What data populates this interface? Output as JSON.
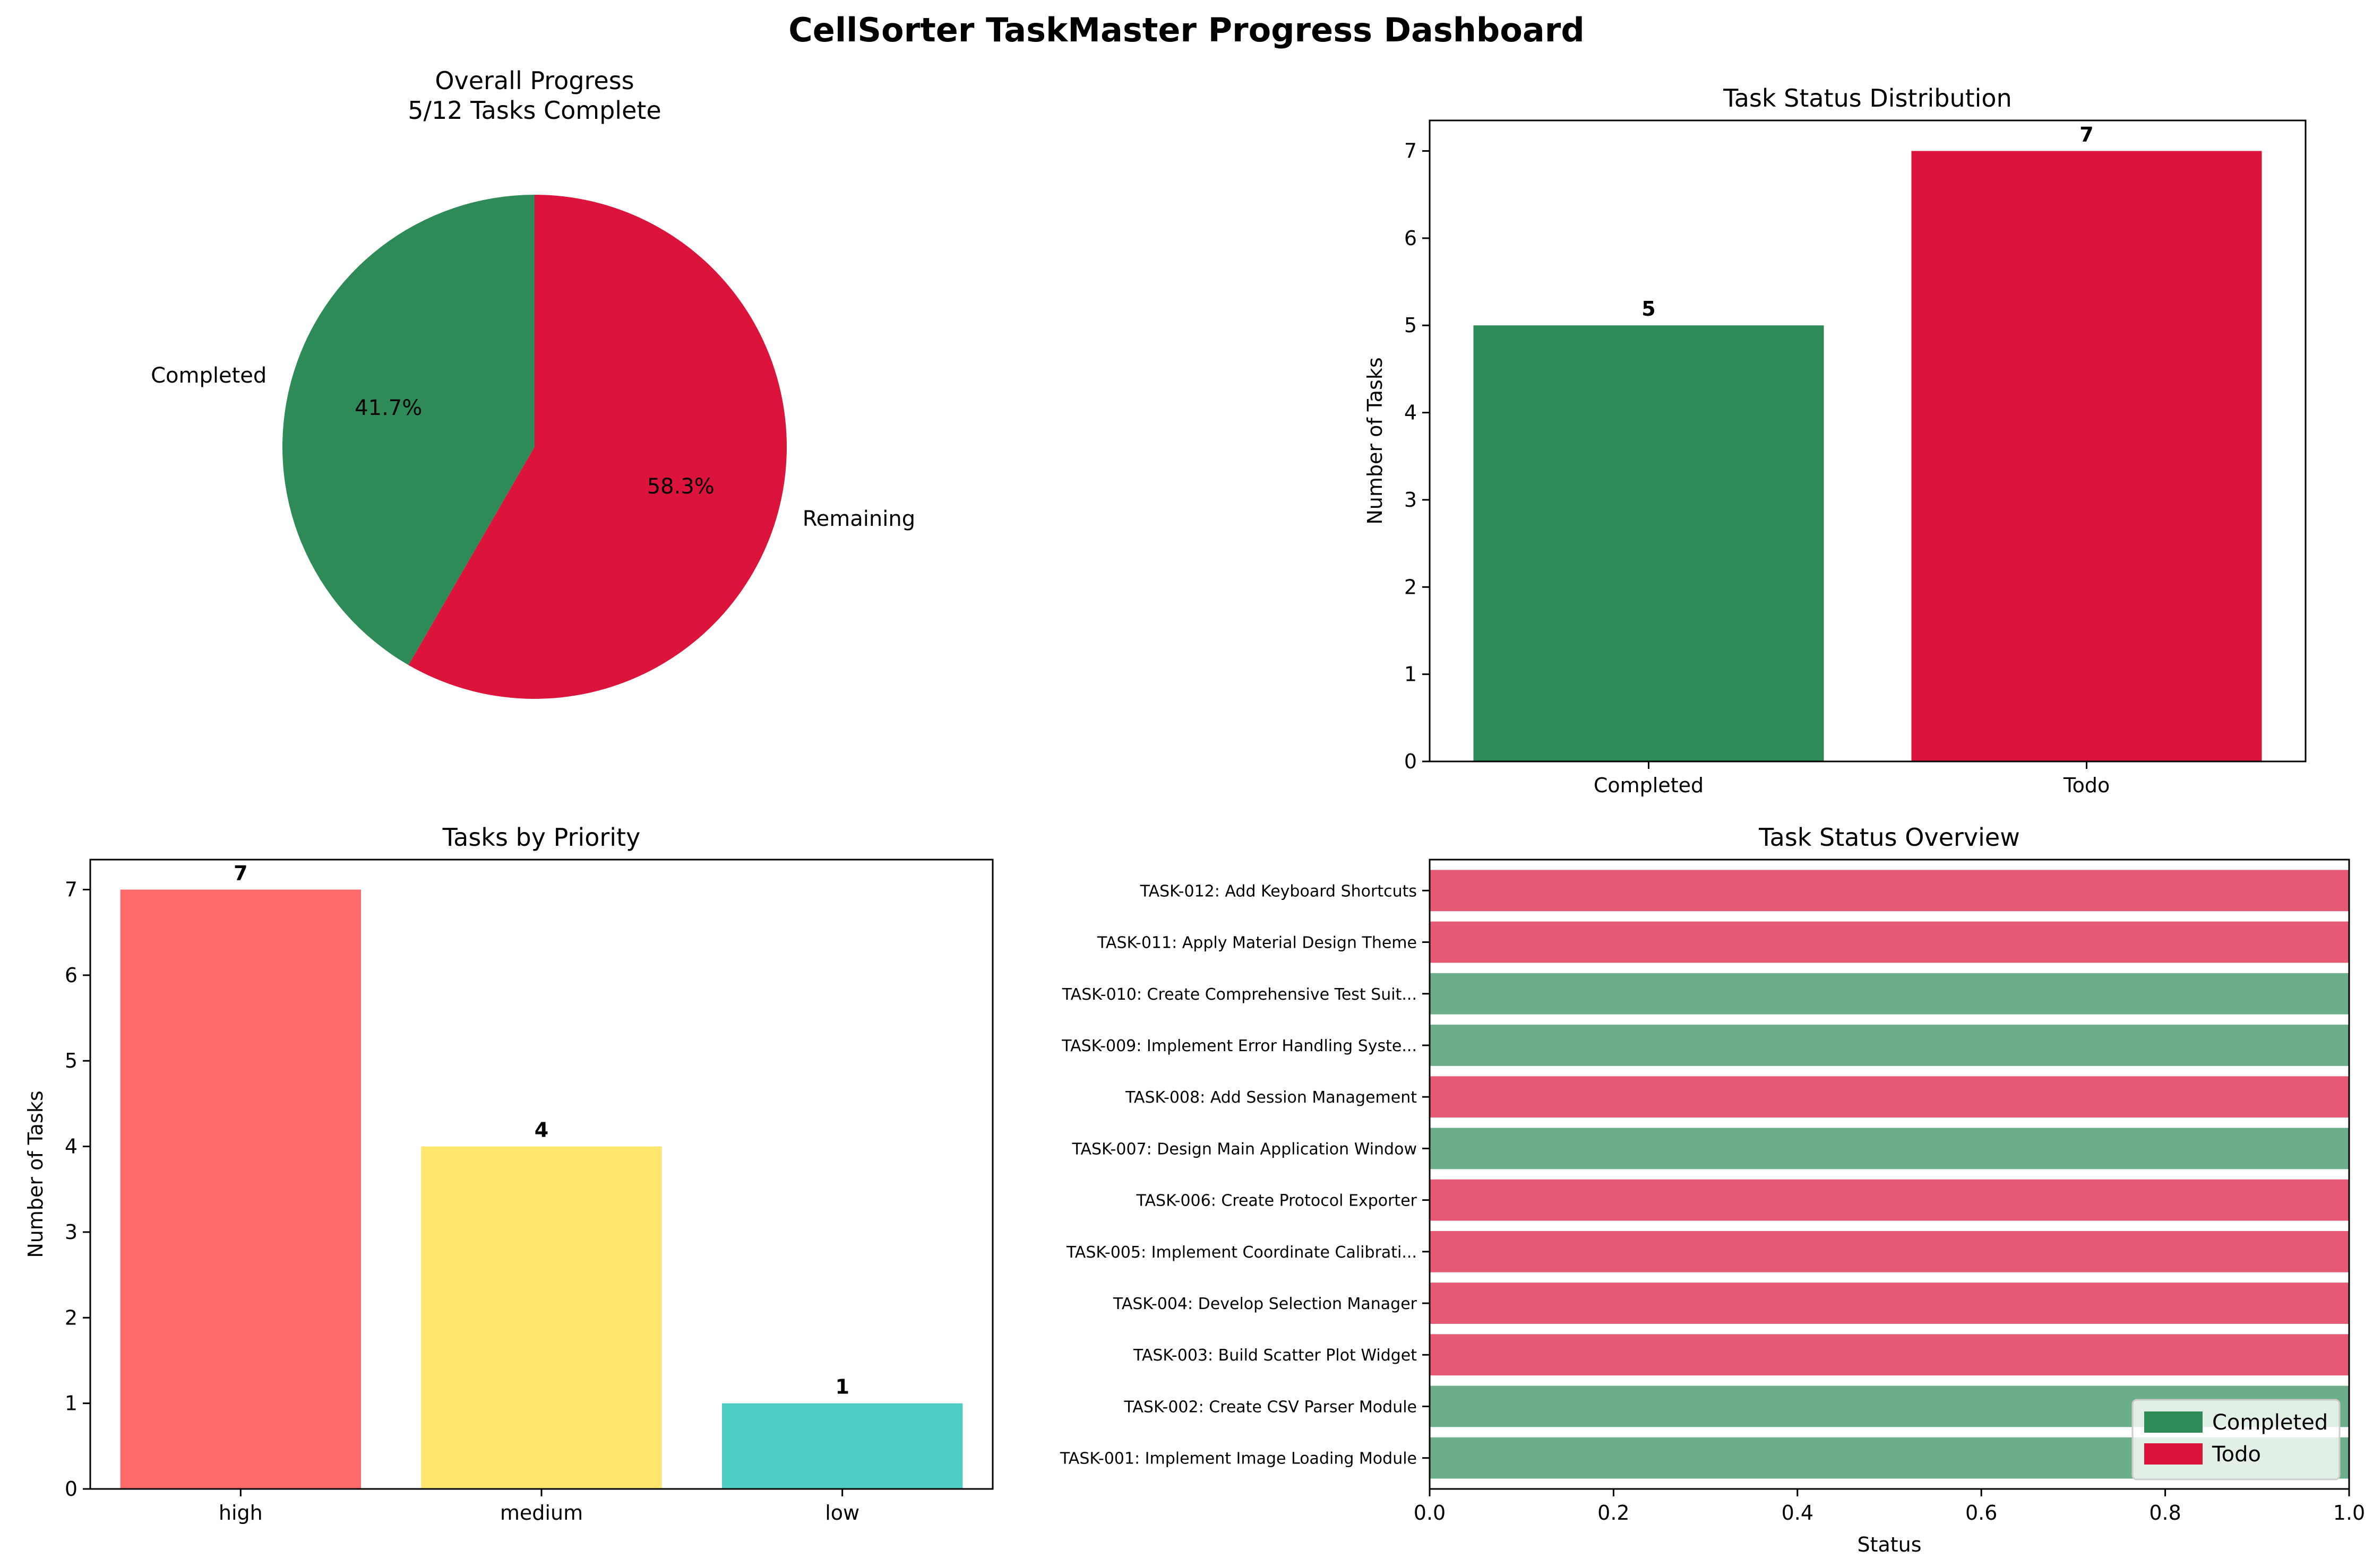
{
  "title": "CellSorter TaskMaster Progress Dashboard",
  "chart_data": [
    {
      "type": "pie",
      "title": "Overall Progress\n5/12 Tasks Complete",
      "labels": [
        "Completed",
        "Remaining"
      ],
      "values": [
        5,
        7
      ],
      "percent_labels": [
        "41.7%",
        "58.3%"
      ],
      "colors": [
        "#2e8b57",
        "#dc143c"
      ],
      "start_angle": 90,
      "counterclockwise": true
    },
    {
      "type": "bar",
      "title": "Task Status Distribution",
      "categories": [
        "Completed",
        "Todo"
      ],
      "values": [
        5,
        7
      ],
      "value_labels": [
        "5",
        "7"
      ],
      "colors": [
        "#2e8b57",
        "#dc143c"
      ],
      "xlabel": "",
      "ylabel": "Number of Tasks",
      "ylim": [
        0,
        7.35
      ],
      "yticks": [
        0,
        1,
        2,
        3,
        4,
        5,
        6,
        7
      ]
    },
    {
      "type": "bar",
      "title": "Tasks by Priority",
      "categories": [
        "high",
        "medium",
        "low"
      ],
      "values": [
        7,
        4,
        1
      ],
      "value_labels": [
        "7",
        "4",
        "1"
      ],
      "colors": [
        "#ff6b6b",
        "#ffe66d",
        "#4ecdc4"
      ],
      "xlabel": "",
      "ylabel": "Number of Tasks",
      "ylim": [
        0,
        7.35
      ],
      "yticks": [
        0,
        1,
        2,
        3,
        4,
        5,
        6,
        7
      ]
    },
    {
      "type": "bar",
      "orientation": "horizontal",
      "title": "Task Status Overview",
      "xlabel": "Status",
      "ylabel": "",
      "xlim": [
        0,
        1
      ],
      "xticks": [
        0.0,
        0.2,
        0.4,
        0.6,
        0.8,
        1.0
      ],
      "xtick_labels": [
        "0.0",
        "0.2",
        "0.4",
        "0.6",
        "0.8",
        "1.0"
      ],
      "bar_alpha": 0.7,
      "status_colors": {
        "Completed": "#2e8b57",
        "Todo": "#dc143c"
      },
      "tasks": [
        {
          "label": "TASK-001: Implement Image Loading Module",
          "status": "Completed",
          "value": 1
        },
        {
          "label": "TASK-002: Create CSV Parser Module",
          "status": "Completed",
          "value": 1
        },
        {
          "label": "TASK-003: Build Scatter Plot Widget",
          "status": "Todo",
          "value": 1
        },
        {
          "label": "TASK-004: Develop Selection Manager",
          "status": "Todo",
          "value": 1
        },
        {
          "label": "TASK-005: Implement Coordinate Calibrati...",
          "status": "Todo",
          "value": 1
        },
        {
          "label": "TASK-006: Create Protocol Exporter",
          "status": "Todo",
          "value": 1
        },
        {
          "label": "TASK-007: Design Main Application Window",
          "status": "Completed",
          "value": 1
        },
        {
          "label": "TASK-008: Add Session Management",
          "status": "Todo",
          "value": 1
        },
        {
          "label": "TASK-009: Implement Error Handling Syste...",
          "status": "Completed",
          "value": 1
        },
        {
          "label": "TASK-010: Create Comprehensive Test Suit...",
          "status": "Completed",
          "value": 1
        },
        {
          "label": "TASK-011: Apply Material Design Theme",
          "status": "Todo",
          "value": 1
        },
        {
          "label": "TASK-012: Add Keyboard Shortcuts",
          "status": "Todo",
          "value": 1
        }
      ],
      "legend": {
        "entries": [
          "Completed",
          "Todo"
        ],
        "placement": "lower-right"
      }
    }
  ]
}
